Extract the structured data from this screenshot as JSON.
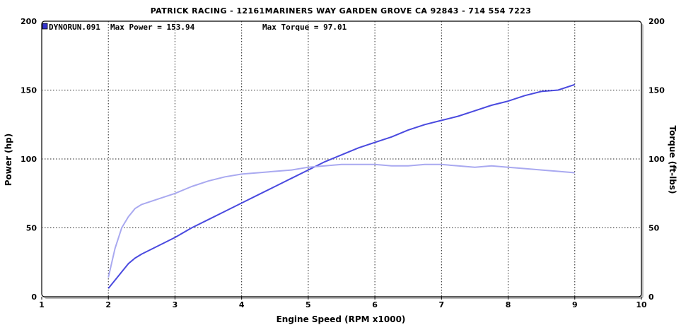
{
  "chart_data": {
    "type": "line",
    "title": "PATRICK RACING - 12161MARINERS WAY GARDEN GROVE CA 92843 - 714 554 7223",
    "legend": {
      "run_name": "DYNORUN.091",
      "max_power_label": "Max Power = 153.94",
      "max_torque_label": "Max Torque = 97.01",
      "placement": "top-left"
    },
    "xlabel": "Engine Speed (RPM x1000)",
    "ylabel_left": "Power (hp)",
    "ylabel_right": "Torque (ft-lbs)",
    "xlim": [
      1,
      10
    ],
    "ylim": [
      0,
      200
    ],
    "xticks": [
      "1",
      "2",
      "3",
      "4",
      "5",
      "6",
      "7",
      "8",
      "9",
      "10"
    ],
    "yticks_left": [
      "0",
      "50",
      "100",
      "150",
      "200"
    ],
    "yticks_right": [
      "0",
      "50",
      "100",
      "150",
      "200"
    ],
    "grid": true,
    "series": [
      {
        "axis": "left",
        "color": "#4a4adf",
        "x": [
          2.0,
          2.1,
          2.2,
          2.3,
          2.4,
          2.5,
          2.75,
          3.0,
          3.25,
          3.5,
          3.75,
          4.0,
          4.25,
          4.5,
          4.75,
          5.0,
          5.25,
          5.5,
          5.75,
          6.0,
          6.25,
          6.5,
          6.75,
          7.0,
          7.25,
          7.5,
          7.75,
          8.0,
          8.25,
          8.5,
          8.75,
          9.0
        ],
        "values": [
          6,
          12,
          18,
          24,
          28,
          31,
          37,
          43,
          50,
          56,
          62,
          68,
          74,
          80,
          86,
          92,
          98,
          103,
          108,
          112,
          116,
          121,
          125,
          128,
          131,
          135,
          139,
          142,
          146,
          149,
          150,
          154
        ]
      },
      {
        "axis": "right",
        "color": "#a9a9f0",
        "x": [
          2.0,
          2.1,
          2.2,
          2.3,
          2.4,
          2.5,
          2.75,
          3.0,
          3.25,
          3.5,
          3.75,
          4.0,
          4.25,
          4.5,
          4.75,
          5.0,
          5.25,
          5.5,
          5.75,
          6.0,
          6.25,
          6.5,
          6.75,
          7.0,
          7.25,
          7.5,
          7.75,
          8.0,
          8.25,
          8.5,
          8.75,
          9.0
        ],
        "values": [
          14,
          35,
          50,
          58,
          64,
          67,
          71,
          75,
          80,
          84,
          87,
          89,
          90,
          91,
          92,
          94,
          95,
          96,
          96,
          96,
          95,
          95,
          96,
          96,
          95,
          94,
          95,
          94,
          93,
          92,
          91,
          90
        ]
      }
    ]
  }
}
